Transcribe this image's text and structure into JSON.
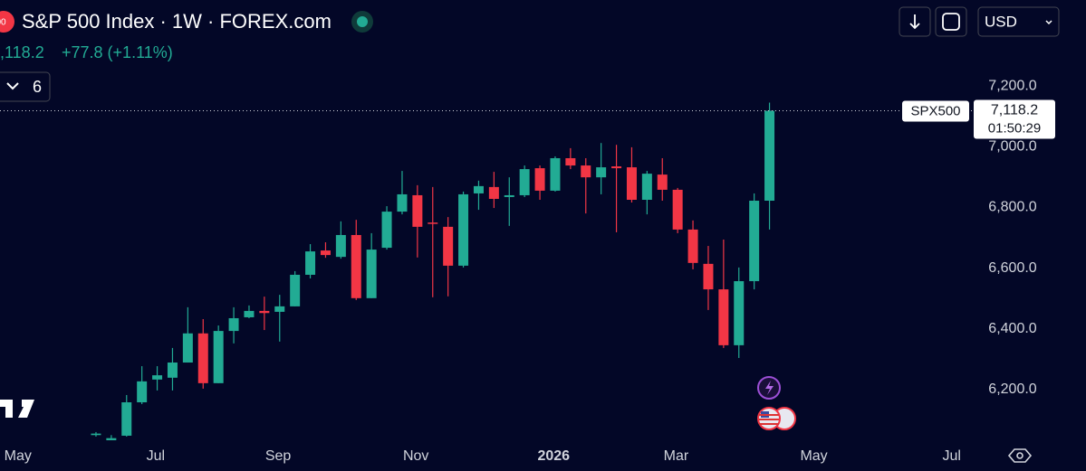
{
  "chart_data": {
    "type": "candlestick",
    "title": "S&P 500 Index · 1W · FOREX.com",
    "badge": "00",
    "header_price": ",118.2",
    "header_change": "+77.8 (+1.11%)",
    "indicator_count": "6",
    "currency": "USD",
    "symbol_label": "SPX500",
    "last_price_label": "7,118.2",
    "countdown": "01:50:29",
    "up_color": "#22ab94",
    "down_color": "#f23645",
    "open": [
      6050,
      6000,
      6048,
      6158,
      6233,
      6239,
      6289,
      6385,
      6221,
      6393,
      6438,
      6459,
      6456,
      6474,
      6578,
      6658,
      6637,
      6709,
      6501,
      6667,
      6786,
      6840,
      6750,
      6736,
      6608,
      6846,
      6867,
      6834,
      6840,
      6929,
      6855,
      6962,
      6938,
      6899,
      6935,
      6932,
      6825,
      6908,
      6858,
      6727,
      6614,
      6530,
      6346,
      6557,
      6822
    ],
    "high": [
      6060,
      6050,
      6182,
      6277,
      6277,
      6337,
      6471,
      6432,
      6411,
      6471,
      6477,
      6506,
      6512,
      6590,
      6679,
      6685,
      6754,
      6759,
      6715,
      6804,
      6920,
      6873,
      6867,
      6768,
      6852,
      6888,
      6917,
      6899,
      6938,
      6938,
      6968,
      6995,
      6962,
      7012,
      7006,
      6998,
      6920,
      6962,
      6864,
      6757,
      6673,
      6694,
      6602,
      6846,
      7145
    ],
    "low": [
      6045,
      5990,
      6045,
      6152,
      6197,
      6197,
      6289,
      6203,
      6221,
      6352,
      6435,
      6396,
      6358,
      6474,
      6566,
      6634,
      6631,
      6495,
      6501,
      6661,
      6777,
      6635,
      6504,
      6507,
      6602,
      6792,
      6798,
      6739,
      6834,
      6825,
      6852,
      6926,
      6780,
      6843,
      6718,
      6816,
      6777,
      6822,
      6715,
      6596,
      6462,
      6337,
      6304,
      6530,
      6727
    ],
    "close": [
      6055,
      6040,
      6158,
      6227,
      6247,
      6289,
      6385,
      6221,
      6393,
      6435,
      6459,
      6452,
      6474,
      6578,
      6655,
      6643,
      6709,
      6501,
      6661,
      6786,
      6843,
      6736,
      6747,
      6608,
      6843,
      6870,
      6828,
      6840,
      6926,
      6855,
      6962,
      6938,
      6899,
      6932,
      6929,
      6825,
      6911,
      6858,
      6727,
      6617,
      6530,
      6346,
      6557,
      6822,
      7118.2
    ],
    "xlim": [
      -6.27,
      57.34
    ],
    "xticks": [
      {
        "value": -5.1,
        "label": "May"
      },
      {
        "value": 3.9,
        "label": "Jul"
      },
      {
        "value": 11.9,
        "label": "Sep"
      },
      {
        "value": 20.9,
        "label": "Nov"
      },
      {
        "value": 29.9,
        "label": "2026"
      },
      {
        "value": 37.9,
        "label": "Mar"
      },
      {
        "value": 46.9,
        "label": "May"
      },
      {
        "value": 55.9,
        "label": "Jul"
      }
    ],
    "ylim": [
      6033,
      7483
    ],
    "yticks": [
      {
        "value": 6200,
        "label": "6,200.0"
      },
      {
        "value": 6400,
        "label": "6,400.0"
      },
      {
        "value": 6600,
        "label": "6,600.0"
      },
      {
        "value": 6800,
        "label": "6,800.0"
      },
      {
        "value": 7000,
        "label": "7,000.0"
      },
      {
        "value": 7200,
        "label": "7,200.0"
      }
    ],
    "grid": false
  }
}
